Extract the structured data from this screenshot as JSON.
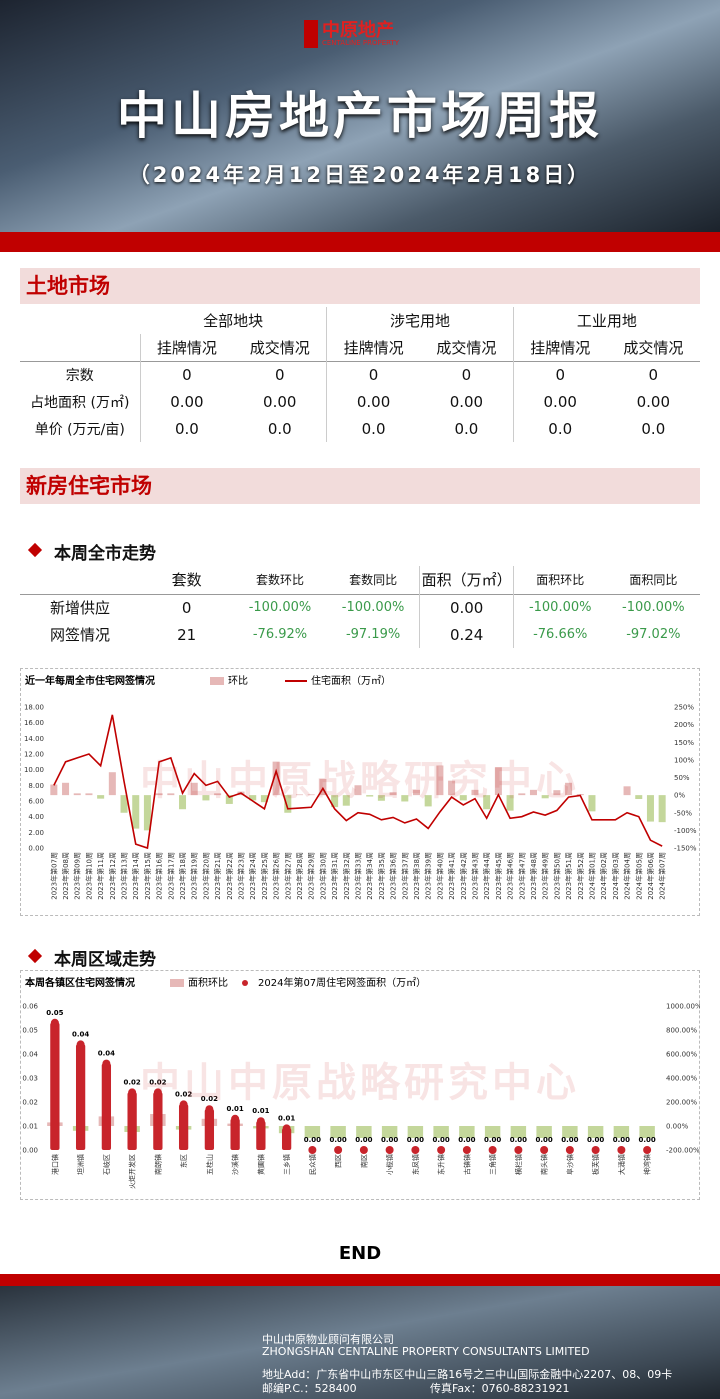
{
  "header": {
    "logo": "中原地产",
    "logo_en": "CENTALINE PROPERTY",
    "title": "中山房地产市场周报",
    "subtitle": "（2024年2月12日至2024年2月18日）"
  },
  "land": {
    "heading": "土地市场",
    "groups": [
      "全部地块",
      "涉宅用地",
      "工业用地"
    ],
    "subheads": [
      "挂牌情况",
      "成交情况",
      "挂牌情况",
      "成交情况",
      "挂牌情况",
      "成交情况"
    ],
    "rows": [
      {
        "label": "宗数",
        "cells": [
          "0",
          "0",
          "0",
          "0",
          "0",
          "0"
        ]
      },
      {
        "label": "占地面积 (万㎡)",
        "cells": [
          "0.00",
          "0.00",
          "0.00",
          "0.00",
          "0.00",
          "0.00"
        ]
      },
      {
        "label": "单价 (万元/亩)",
        "cells": [
          "0.0",
          "0.0",
          "0.0",
          "0.0",
          "0.0",
          "0.0"
        ]
      }
    ]
  },
  "residential": {
    "heading": "新房住宅市场",
    "city_heading": "本周全市走势",
    "columns": [
      "套数",
      "套数环比",
      "套数同比",
      "面积（万㎡）",
      "面积环比",
      "面积同比"
    ],
    "rows": [
      {
        "label": "新增供应",
        "cells": [
          "0",
          "-100.00%",
          "-100.00%",
          "0.00",
          "-100.00%",
          "-100.00%"
        ]
      },
      {
        "label": "网签情况",
        "cells": [
          "21",
          "-76.92%",
          "-97.19%",
          "0.24",
          "-76.66%",
          "-97.02%"
        ]
      }
    ],
    "district_heading": "本周区域走势"
  },
  "watermark": "中山中原战略研究中心",
  "chart_data": [
    {
      "type": "combo",
      "title": "近一年每周全市住宅网签情况",
      "grid": false,
      "categories": [
        "2023年第07周",
        "2023年第08周",
        "2023年第09周",
        "2023年第10周",
        "2023年第11周",
        "2023年第12周",
        "2023年第13周",
        "2023年第14周",
        "2023年第15周",
        "2023年第16周",
        "2023年第17周",
        "2023年第18周",
        "2023年第19周",
        "2023年第20周",
        "2023年第21周",
        "2023年第22周",
        "2023年第23周",
        "2023年第24周",
        "2023年第25周",
        "2023年第26周",
        "2023年第27周",
        "2023年第28周",
        "2023年第29周",
        "2023年第30周",
        "2023年第31周",
        "2023年第32周",
        "2023年第33周",
        "2023年第34周",
        "2023年第35周",
        "2023年第36周",
        "2023年第37周",
        "2023年第38周",
        "2023年第39周",
        "2023年第40周",
        "2023年第41周",
        "2023年第42周",
        "2023年第43周",
        "2023年第44周",
        "2023年第45周",
        "2023年第46周",
        "2023年第47周",
        "2023年第48周",
        "2023年第49周",
        "2023年第50周",
        "2023年第51周",
        "2023年第52周",
        "2024年第01周",
        "2024年第02周",
        "2024年第03周",
        "2024年第04周",
        "2024年第05周",
        "2024年第06周",
        "2024年第07周"
      ],
      "series": [
        {
          "name": "环比",
          "type": "bar",
          "axis": "y2",
          "color": "#e6b8b7",
          "negative_color": "#c4d79b",
          "values": [
            30,
            35,
            5,
            5,
            -10,
            65,
            -50,
            -95,
            -100,
            5,
            5,
            -40,
            35,
            -15,
            5,
            -25,
            10,
            -15,
            -20,
            95,
            -50,
            2,
            2,
            46,
            -34,
            -30,
            28,
            -4,
            -16,
            8,
            -18,
            15,
            -32,
            84,
            41,
            -15,
            15,
            -40,
            79,
            -44,
            5,
            15,
            -9,
            14,
            35,
            3,
            -46,
            0,
            0,
            25,
            -11,
            -75,
            -76.66
          ]
        },
        {
          "name": "住宅面积（万㎡）",
          "type": "line",
          "color": "#c00000",
          "values": [
            8.0,
            11.0,
            11.5,
            12.0,
            10.5,
            17.0,
            8.5,
            0.5,
            0.0,
            11.0,
            11.5,
            7.0,
            9.5,
            8.0,
            8.5,
            6.5,
            7.0,
            6.0,
            5.0,
            9.8,
            5.0,
            5.1,
            5.2,
            7.6,
            5.0,
            3.5,
            4.5,
            4.3,
            3.6,
            3.9,
            3.2,
            3.7,
            2.5,
            4.6,
            6.5,
            5.5,
            6.3,
            3.8,
            6.8,
            3.8,
            4.0,
            4.6,
            4.2,
            4.8,
            6.5,
            6.7,
            3.6,
            3.6,
            3.6,
            4.5,
            4.0,
            1.0,
            0.24
          ]
        }
      ],
      "ylim": [
        0,
        18
      ],
      "yticks": [
        {
          "value": 0,
          "label": "0.00"
        },
        {
          "value": 2,
          "label": "2.00"
        },
        {
          "value": 4,
          "label": "4.00"
        },
        {
          "value": 6,
          "label": "6.00"
        },
        {
          "value": 8,
          "label": "8.00"
        },
        {
          "value": 10,
          "label": "10.00"
        },
        {
          "value": 12,
          "label": "12.00"
        },
        {
          "value": 14,
          "label": "14.00"
        },
        {
          "value": 16,
          "label": "16.00"
        },
        {
          "value": 18,
          "label": "18.00"
        }
      ],
      "y2lim": [
        -150,
        250
      ],
      "y2ticks": [
        {
          "value": -150,
          "label": "-150%"
        },
        {
          "value": -100,
          "label": "-100%"
        },
        {
          "value": -50,
          "label": "-50%"
        },
        {
          "value": 0,
          "label": "0%"
        },
        {
          "value": 50,
          "label": "50%"
        },
        {
          "value": 100,
          "label": "100%"
        },
        {
          "value": 150,
          "label": "150%"
        },
        {
          "value": 200,
          "label": "200%"
        },
        {
          "value": 250,
          "label": "250%"
        }
      ]
    },
    {
      "type": "combo",
      "title": "本周各镇区住宅网签情况",
      "grid": false,
      "categories": [
        "港口镇",
        "坦洲镇",
        "石岐区",
        "火炬开发区",
        "南朗镇",
        "东区",
        "五桂山",
        "沙溪镇",
        "黄圃镇",
        "三乡镇",
        "民众镇",
        "西区",
        "南区",
        "小榄镇",
        "东凤镇",
        "东升镇",
        "古镇镇",
        "三角镇",
        "横栏镇",
        "南头镇",
        "阜沙镇",
        "板芙镇",
        "大涌镇",
        "神湾镇"
      ],
      "series": [
        {
          "name": "面积环比",
          "type": "bar",
          "axis": "y2",
          "color": "#e6b8b7",
          "negative_color": "#c4d79b",
          "values": [
            30,
            -40,
            80,
            -50,
            100,
            -30,
            60,
            20,
            -20,
            -60,
            -100,
            -100,
            -100,
            -100,
            -100,
            -100,
            -100,
            -100,
            -100,
            -100,
            -100,
            -100,
            -100,
            -100
          ]
        },
        {
          "name": "2024年第07周住宅网签面积（万㎡）",
          "type": "lollipop",
          "color": "#c8242b",
          "values": [
            0.053,
            0.044,
            0.036,
            0.024,
            0.024,
            0.019,
            0.017,
            0.013,
            0.012,
            0.009,
            0,
            0,
            0,
            0,
            0,
            0,
            0,
            0,
            0,
            0,
            0,
            0,
            0,
            0
          ],
          "value_labels": [
            "0.05",
            "0.04",
            "0.04",
            "0.02",
            "0.02",
            "0.02",
            "0.02",
            "0.01",
            "0.01",
            "0.01",
            "0.00",
            "0.00",
            "0.00",
            "0.00",
            "0.00",
            "0.00",
            "0.00",
            "0.00",
            "0.00",
            "0.00",
            "0.00",
            "0.00",
            "0.00",
            "0.00"
          ]
        }
      ],
      "ylim": [
        0,
        0.06
      ],
      "yticks": [
        {
          "value": 0,
          "label": "0.00"
        },
        0.01,
        0.02,
        0.03,
        0.04,
        0.05,
        0.06
      ],
      "y2lim": [
        -200,
        1000
      ],
      "y2ticks": [
        {
          "value": -200,
          "label": "-200.00%"
        },
        {
          "value": 0,
          "label": "0.00%"
        },
        {
          "value": 200,
          "label": "200.00%"
        },
        {
          "value": 400,
          "label": "400.00%"
        },
        {
          "value": 600,
          "label": "600.00%"
        },
        {
          "value": 800,
          "label": "800.00%"
        },
        {
          "value": 1000,
          "label": "1000.00%"
        }
      ]
    }
  ],
  "end": "END",
  "footer": {
    "company": "中山中原物业顾问有限公司",
    "company_en": "ZHONGSHAN CENTALINE PROPERTY CONSULTANTS LIMITED",
    "address": "地址Add：广东省中山市东区中山三路16号之三中山国际金融中心2207、08、09卡",
    "postcode": "邮编P.C.：528400",
    "fax": "传真Fax：0760-88231921"
  }
}
